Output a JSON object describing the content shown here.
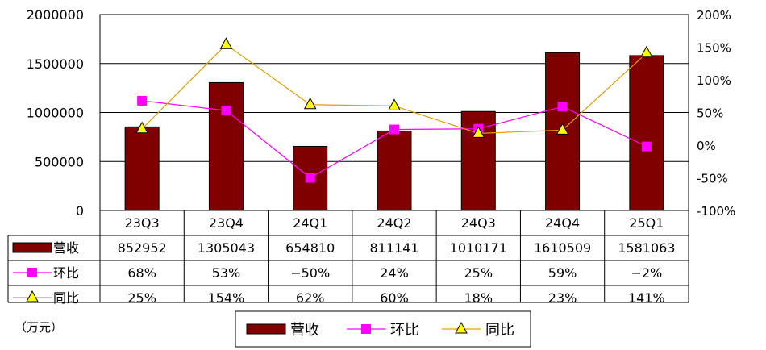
{
  "chart_data": {
    "type": "bar",
    "title": "",
    "categories": [
      "23Q3",
      "23Q4",
      "24Q1",
      "24Q2",
      "24Q3",
      "24Q4",
      "25Q1"
    ],
    "y_left": {
      "ticks": [
        0,
        500000,
        1000000,
        1500000,
        2000000
      ],
      "ylim": [
        0,
        2000000
      ]
    },
    "y_right": {
      "ticks": [
        "-100%",
        "-50%",
        "0%",
        "50%",
        "100%",
        "150%",
        "200%"
      ],
      "ylim": [
        -100,
        200
      ],
      "unit": "%"
    },
    "grid": true,
    "unit_label": "（万元）",
    "series": [
      {
        "name": "营收",
        "type": "bar",
        "axis": "left",
        "color": "#800000",
        "values": [
          852952,
          1305043,
          654810,
          811141,
          1010171,
          1610509,
          1581063
        ]
      },
      {
        "name": "环比",
        "type": "line",
        "axis": "right",
        "color": "#ff00ff",
        "marker": "square",
        "values": [
          68,
          53,
          -50,
          24,
          25,
          59,
          -2
        ]
      },
      {
        "name": "同比",
        "type": "line",
        "axis": "right",
        "color": "#e0a000",
        "marker": "triangle",
        "values": [
          25,
          154,
          62,
          60,
          18,
          23,
          141
        ]
      }
    ],
    "legend_position": "bottom"
  }
}
